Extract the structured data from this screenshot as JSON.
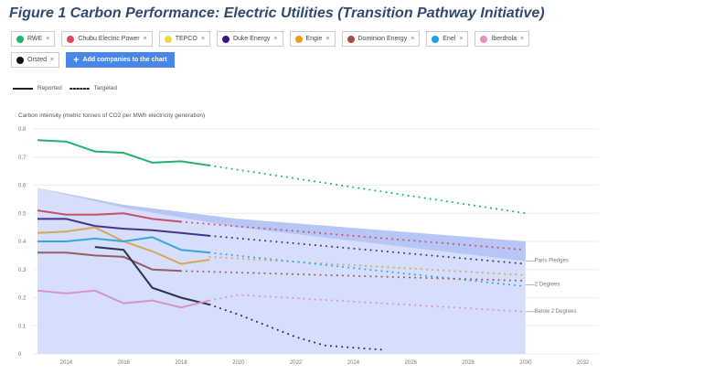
{
  "title": "Figure 1 Carbon Performance: Electric Utilities (Transition Pathway Initiative)",
  "companies": [
    {
      "name": "RWE",
      "color": "#1fb36b"
    },
    {
      "name": "Chubu Electric Power",
      "color": "#e0475a"
    },
    {
      "name": "TEPCO",
      "color": "#f7d54a"
    },
    {
      "name": "Duke Energy",
      "color": "#3b1580"
    },
    {
      "name": "Engie",
      "color": "#f29a1e"
    },
    {
      "name": "Dominion Energy",
      "color": "#a94a3d"
    },
    {
      "name": "Enel",
      "color": "#1ba1e6"
    },
    {
      "name": "Iberdrola",
      "color": "#ec8fb6"
    },
    {
      "name": "Orsted",
      "color": "#111111"
    }
  ],
  "add_button": "Add companies to the chart",
  "legend": {
    "reported": "Reported",
    "targeted": "Targeted"
  },
  "chart_data": {
    "type": "line",
    "ylabel": "Carbon intensity (metric tonnes of CO2 per MWh electricity generation)",
    "xlim": [
      2013,
      2032.5
    ],
    "ylim": [
      0,
      0.8
    ],
    "xticks": [
      2014,
      2016,
      2018,
      2020,
      2022,
      2024,
      2026,
      2028,
      2030,
      2032
    ],
    "yticks": [
      0,
      0.1,
      0.2,
      0.3,
      0.4,
      0.5,
      0.6,
      0.7,
      0.8
    ],
    "grid": true,
    "series": [
      {
        "name": "RWE",
        "color": "#1fb36b",
        "reported": [
          [
            2013,
            0.76
          ],
          [
            2014,
            0.755
          ],
          [
            2015,
            0.72
          ],
          [
            2016,
            0.715
          ],
          [
            2017,
            0.68
          ],
          [
            2018,
            0.685
          ],
          [
            2019,
            0.67
          ]
        ],
        "targeted": [
          [
            2019,
            0.67
          ],
          [
            2030,
            0.5
          ]
        ]
      },
      {
        "name": "Chubu Electric Power",
        "color": "#c9506a",
        "reported": [
          [
            2013,
            0.51
          ],
          [
            2014,
            0.495
          ],
          [
            2015,
            0.495
          ],
          [
            2016,
            0.5
          ],
          [
            2017,
            0.48
          ],
          [
            2018,
            0.47
          ]
        ],
        "targeted": [
          [
            2018,
            0.47
          ],
          [
            2030,
            0.37
          ]
        ]
      },
      {
        "name": "Duke Energy",
        "color": "#45338a",
        "reported": [
          [
            2013,
            0.48
          ],
          [
            2014,
            0.48
          ],
          [
            2015,
            0.455
          ],
          [
            2016,
            0.445
          ],
          [
            2017,
            0.44
          ],
          [
            2018,
            0.43
          ],
          [
            2019,
            0.42
          ]
        ],
        "targeted": [
          [
            2019,
            0.42
          ],
          [
            2030,
            0.32
          ]
        ]
      },
      {
        "name": "Engie",
        "color": "#d9a55a",
        "reported": [
          [
            2013,
            0.43
          ],
          [
            2014,
            0.435
          ],
          [
            2015,
            0.45
          ],
          [
            2016,
            0.4
          ],
          [
            2017,
            0.365
          ],
          [
            2018,
            0.32
          ],
          [
            2019,
            0.335
          ]
        ],
        "targeted": [
          [
            2019,
            0.345
          ],
          [
            2030,
            0.28
          ]
        ]
      },
      {
        "name": "Enel",
        "color": "#35a6e0",
        "reported": [
          [
            2013,
            0.4
          ],
          [
            2014,
            0.4
          ],
          [
            2015,
            0.41
          ],
          [
            2016,
            0.4
          ],
          [
            2017,
            0.415
          ],
          [
            2018,
            0.37
          ],
          [
            2019,
            0.36
          ]
        ],
        "targeted": [
          [
            2019,
            0.36
          ],
          [
            2030,
            0.24
          ]
        ]
      },
      {
        "name": "Dominion Energy",
        "color": "#9a5a6a",
        "reported": [
          [
            2013,
            0.36
          ],
          [
            2014,
            0.36
          ],
          [
            2015,
            0.35
          ],
          [
            2016,
            0.345
          ],
          [
            2017,
            0.3
          ],
          [
            2018,
            0.295
          ]
        ],
        "targeted": [
          [
            2018,
            0.295
          ],
          [
            2030,
            0.26
          ]
        ]
      },
      {
        "name": "Orsted",
        "color": "#2a3350",
        "reported": [
          [
            2015,
            0.38
          ],
          [
            2016,
            0.37
          ],
          [
            2017,
            0.235
          ],
          [
            2018,
            0.2
          ],
          [
            2019,
            0.175
          ]
        ],
        "targeted": [
          [
            2019,
            0.175
          ],
          [
            2020,
            0.14
          ],
          [
            2021,
            0.1
          ],
          [
            2022,
            0.06
          ],
          [
            2023,
            0.03
          ],
          [
            2024,
            0.022
          ],
          [
            2025,
            0.015
          ]
        ]
      },
      {
        "name": "Iberdrola",
        "color": "#d993c8",
        "reported": [
          [
            2013,
            0.225
          ],
          [
            2014,
            0.215
          ],
          [
            2015,
            0.225
          ],
          [
            2016,
            0.18
          ],
          [
            2017,
            0.19
          ],
          [
            2018,
            0.165
          ],
          [
            2019,
            0.19
          ]
        ],
        "targeted": [
          [
            2019,
            0.19
          ],
          [
            2020,
            0.21
          ],
          [
            2030,
            0.15
          ]
        ]
      }
    ],
    "benchmarks": [
      {
        "name": "Paris Pledges",
        "upper": [
          [
            2013,
            0.59
          ],
          [
            2016,
            0.53
          ],
          [
            2020,
            0.48
          ],
          [
            2030,
            0.4
          ]
        ],
        "lower": [
          [
            2013,
            0.59
          ],
          [
            2016,
            0.52
          ],
          [
            2020,
            0.45
          ],
          [
            2030,
            0.33
          ]
        ],
        "label_value": 0.33
      },
      {
        "name": "2 Degrees",
        "label_value": 0.245
      },
      {
        "name": "Below 2 Degrees",
        "label_value": 0.15
      }
    ]
  }
}
